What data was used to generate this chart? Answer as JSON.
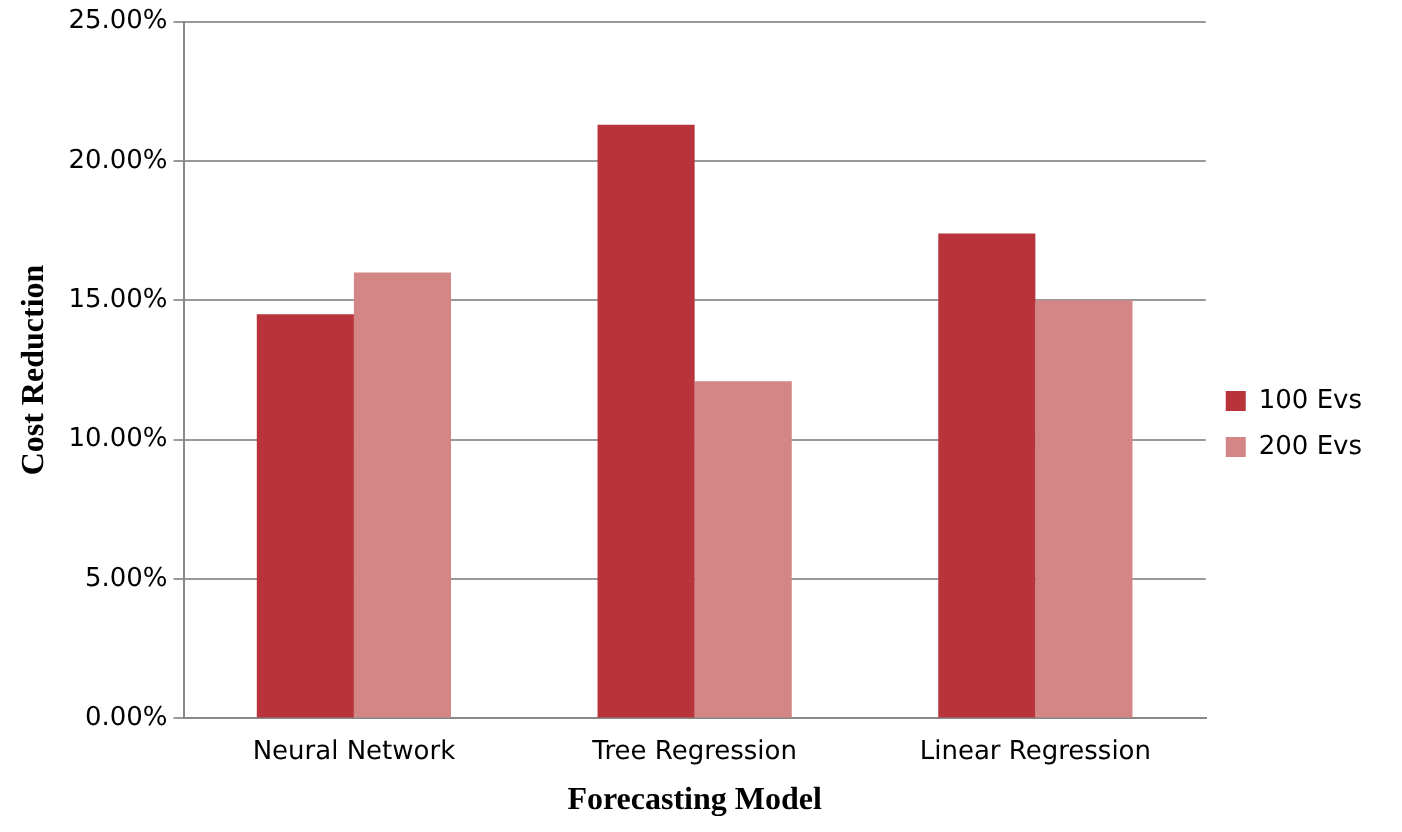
{
  "chart_data": {
    "type": "bar",
    "xlabel": "Forecasting Model",
    "ylabel": "Cost Reduction",
    "categories": [
      "Neural Network",
      "Tree Regression",
      "Linear Regression"
    ],
    "series": [
      {
        "name": "100 Evs",
        "color": "#b8343a",
        "values": [
          14.5,
          21.3,
          17.4
        ]
      },
      {
        "name": "200 Evs",
        "color": "#d48585",
        "values": [
          16.0,
          12.1,
          15.0
        ]
      }
    ],
    "ylim": [
      0,
      25
    ],
    "yticks": [
      {
        "value": 0,
        "label": "0.00%"
      },
      {
        "value": 5,
        "label": "5.00%"
      },
      {
        "value": 10,
        "label": "10.00%"
      },
      {
        "value": 15,
        "label": "15.00%"
      },
      {
        "value": 20,
        "label": "20.00%"
      },
      {
        "value": 25,
        "label": "25.00%"
      }
    ],
    "grid": "y",
    "legend": "right"
  }
}
